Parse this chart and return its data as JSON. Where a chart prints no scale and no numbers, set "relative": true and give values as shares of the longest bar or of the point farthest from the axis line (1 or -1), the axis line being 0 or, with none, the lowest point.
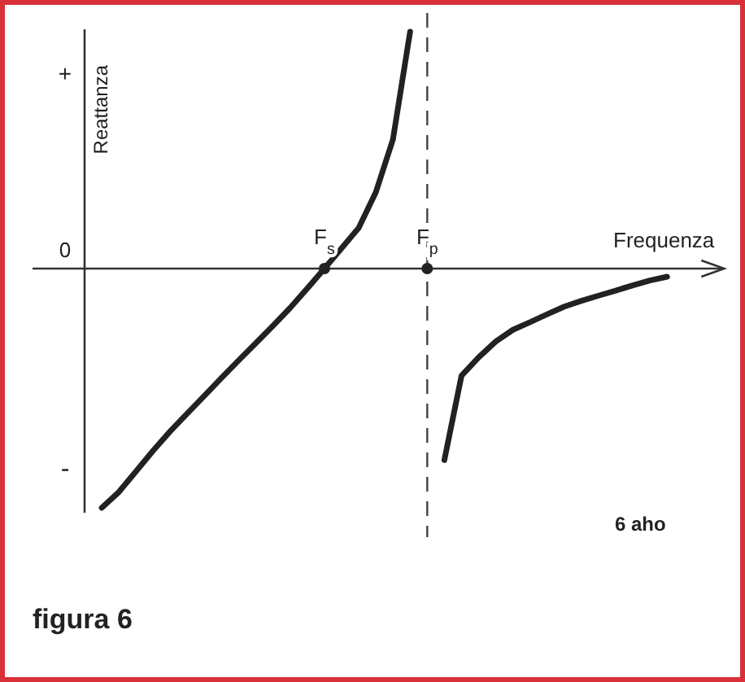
{
  "chart_data": {
    "type": "line",
    "title": "figura 6",
    "xlabel": "Frequenza",
    "ylabel": "Reattanza",
    "relative": true,
    "categories": [
      null,
      null,
      null,
      null,
      null,
      null,
      null,
      null,
      null,
      null,
      null,
      null,
      null,
      null,
      "F$_{s}$",
      null,
      null,
      null,
      null,
      null,
      "F$_{p}$",
      null,
      null,
      null,
      null,
      null,
      null,
      null,
      null,
      null,
      null,
      null,
      null,
      null,
      null,
      null,
      null
    ],
    "series": [
      {
        "color": "#222222",
        "values": [
          null,
          -1,
          -0.934,
          -0.848,
          -0.761,
          -0.68,
          -0.605,
          -0.531,
          -0.456,
          -0.383,
          -0.311,
          -0.239,
          -0.164,
          -0.083,
          0,
          0.085,
          0.17,
          0.319,
          0.54,
          0.99,
          null,
          null,
          null,
          null,
          null,
          null,
          null,
          null,
          null,
          null,
          null,
          null,
          null,
          null,
          null,
          null,
          null
        ]
      },
      {
        "color": "#222222",
        "values": [
          null,
          null,
          null,
          null,
          null,
          null,
          null,
          null,
          null,
          null,
          null,
          null,
          null,
          null,
          null,
          null,
          null,
          null,
          null,
          null,
          null,
          -0.8,
          -0.448,
          -0.371,
          -0.305,
          -0.256,
          -0.224,
          -0.191,
          -0.159,
          -0.135,
          -0.113,
          -0.092,
          -0.07,
          -0.05,
          -0.034,
          null,
          null
        ]
      },
      {
        "type": "scatter",
        "marker": "circle",
        "color": "#222222",
        "values": [
          null,
          null,
          null,
          null,
          null,
          null,
          null,
          null,
          null,
          null,
          null,
          null,
          null,
          null,
          0,
          null,
          null,
          null,
          null,
          null,
          0,
          null,
          null,
          null,
          null,
          null,
          null,
          null,
          null,
          null,
          null,
          null,
          null,
          null,
          null,
          null,
          null
        ]
      }
    ],
    "ref_lines": [
      {
        "axis": "x",
        "value": "F$_{p}$",
        "line_style": "dashed",
        "color": "#444444"
      }
    ],
    "annotations": [
      "+",
      "-",
      "0",
      "6 aho"
    ],
    "marker": "none",
    "line_style": "solid"
  }
}
